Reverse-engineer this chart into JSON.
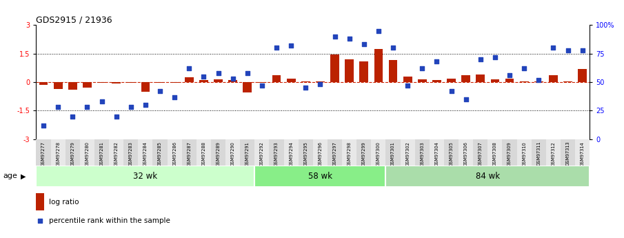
{
  "title": "GDS2915 / 21936",
  "samples": [
    "GSM97277",
    "GSM97278",
    "GSM97279",
    "GSM97280",
    "GSM97281",
    "GSM97282",
    "GSM97283",
    "GSM97284",
    "GSM97285",
    "GSM97286",
    "GSM97287",
    "GSM97288",
    "GSM97289",
    "GSM97290",
    "GSM97291",
    "GSM97292",
    "GSM97293",
    "GSM97294",
    "GSM97295",
    "GSM97296",
    "GSM97297",
    "GSM97298",
    "GSM97299",
    "GSM97300",
    "GSM97301",
    "GSM97302",
    "GSM97303",
    "GSM97304",
    "GSM97305",
    "GSM97306",
    "GSM97307",
    "GSM97308",
    "GSM97309",
    "GSM97310",
    "GSM97311",
    "GSM97312",
    "GSM97313",
    "GSM97314"
  ],
  "log_ratio": [
    -0.15,
    -0.35,
    -0.4,
    -0.28,
    -0.05,
    -0.08,
    -0.04,
    -0.5,
    -0.04,
    -0.04,
    0.25,
    0.12,
    0.15,
    0.1,
    -0.55,
    -0.04,
    0.35,
    0.2,
    0.05,
    0.05,
    1.45,
    1.2,
    1.1,
    1.75,
    1.15,
    0.3,
    0.14,
    0.1,
    0.2,
    0.35,
    0.4,
    0.15,
    0.2,
    0.05,
    0.05,
    0.35,
    0.05,
    0.7
  ],
  "percentile": [
    12,
    28,
    20,
    28,
    33,
    20,
    28,
    30,
    42,
    37,
    62,
    55,
    58,
    53,
    58,
    47,
    80,
    82,
    45,
    48,
    90,
    88,
    83,
    95,
    80,
    47,
    62,
    68,
    42,
    35,
    70,
    72,
    56,
    62,
    52,
    80,
    78,
    78
  ],
  "groups": [
    {
      "label": "32 wk",
      "start": 0,
      "end": 14
    },
    {
      "label": "58 wk",
      "start": 15,
      "end": 23
    },
    {
      "label": "84 wk",
      "start": 24,
      "end": 37
    }
  ],
  "group_colors": [
    "#ccffcc",
    "#88ee88",
    "#aaddaa"
  ],
  "ylim_left": [
    -3,
    3
  ],
  "ylim_right": [
    0,
    100
  ],
  "yticks_left": [
    -3,
    -1.5,
    0,
    1.5,
    3
  ],
  "yticks_right": [
    0,
    25,
    50,
    75,
    100
  ],
  "ytick_labels_right": [
    "0",
    "25",
    "50",
    "75",
    "100%"
  ],
  "hlines": [
    1.5,
    -1.5
  ],
  "bar_color": "#bb2200",
  "dot_color": "#2244bb",
  "zero_line_color": "#cc2200",
  "background_color": "#ffffff",
  "age_label": "age",
  "legend_items": [
    "log ratio",
    "percentile rank within the sample"
  ]
}
